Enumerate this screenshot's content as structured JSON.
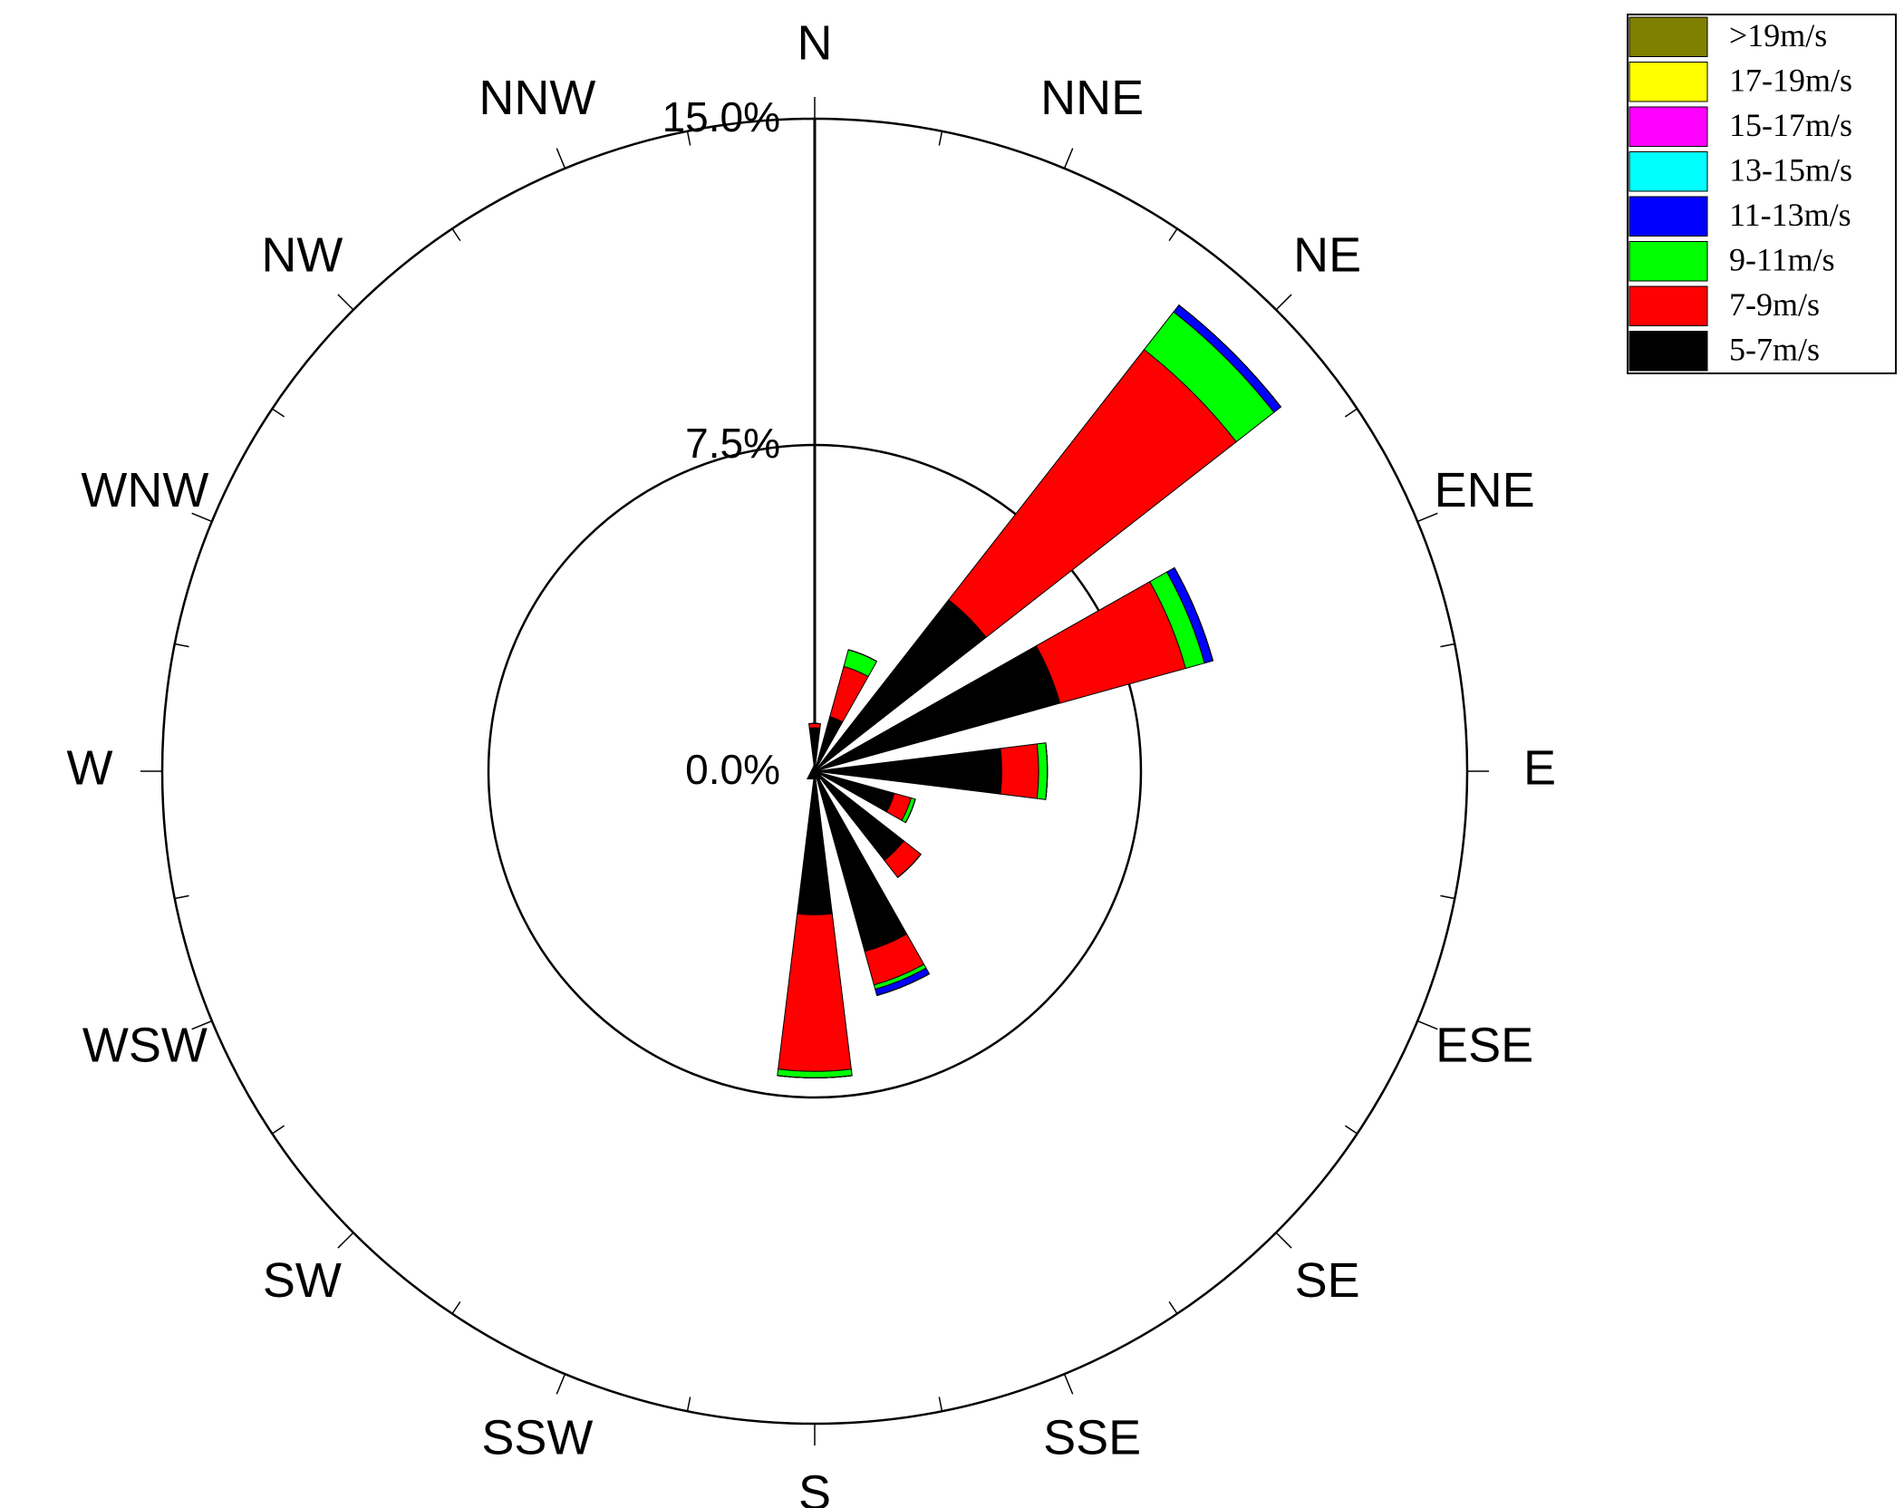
{
  "chart_data": {
    "type": "windrose",
    "categories": [
      "N",
      "NNE",
      "NE",
      "ENE",
      "E",
      "ESE",
      "SE",
      "SSE",
      "S",
      "SSW",
      "SW",
      "WSW",
      "W",
      "WNW",
      "NW",
      "NNW"
    ],
    "rlim": [
      0,
      15
    ],
    "rticks": [
      {
        "value": 0,
        "label": "0.0%"
      },
      {
        "value": 7.5,
        "label": "7.5%"
      },
      {
        "value": 15,
        "label": "15.0%"
      }
    ],
    "series": [
      {
        "name": ">19m/s",
        "color": "#808000",
        "values": [
          0,
          0,
          0,
          0,
          0,
          0,
          0,
          0,
          0,
          0,
          0,
          0,
          0,
          0,
          0,
          0
        ]
      },
      {
        "name": "17-19m/s",
        "color": "#ffff00",
        "values": [
          0,
          0,
          0,
          0,
          0,
          0,
          0,
          0,
          0,
          0,
          0,
          0,
          0,
          0,
          0,
          0
        ]
      },
      {
        "name": "15-17m/s",
        "color": "#ff00ff",
        "values": [
          0,
          0,
          0,
          0,
          0,
          0,
          0,
          0,
          0,
          0,
          0,
          0,
          0,
          0,
          0,
          0
        ]
      },
      {
        "name": "13-15m/s",
        "color": "#00ffff",
        "values": [
          0,
          0,
          0,
          0,
          0,
          0,
          0,
          0,
          0,
          0,
          0,
          0,
          0,
          0,
          0,
          0
        ]
      },
      {
        "name": "11-13m/s",
        "color": "#0000ff",
        "values": [
          0,
          0,
          0.2,
          0.2,
          0,
          0,
          0,
          0.15,
          0,
          0,
          0,
          0,
          0,
          0,
          0,
          0
        ]
      },
      {
        "name": "9-11m/s",
        "color": "#00ff00",
        "values": [
          0,
          0.4,
          1.1,
          0.45,
          0.2,
          0.1,
          0,
          0.1,
          0.15,
          0,
          0,
          0,
          0,
          0,
          0,
          0
        ]
      },
      {
        "name": "7-9m/s",
        "color": "#ff0000",
        "values": [
          0.1,
          1.2,
          7.3,
          3.0,
          0.85,
          0.4,
          0.5,
          0.8,
          3.6,
          0,
          0,
          0,
          0,
          0,
          0,
          0
        ]
      },
      {
        "name": "5-7m/s",
        "color": "#000000",
        "values": [
          1.0,
          1.3,
          5.0,
          5.85,
          4.3,
          1.9,
          2.6,
          4.3,
          3.3,
          0,
          0,
          0,
          0,
          0,
          0,
          0
        ]
      }
    ]
  }
}
